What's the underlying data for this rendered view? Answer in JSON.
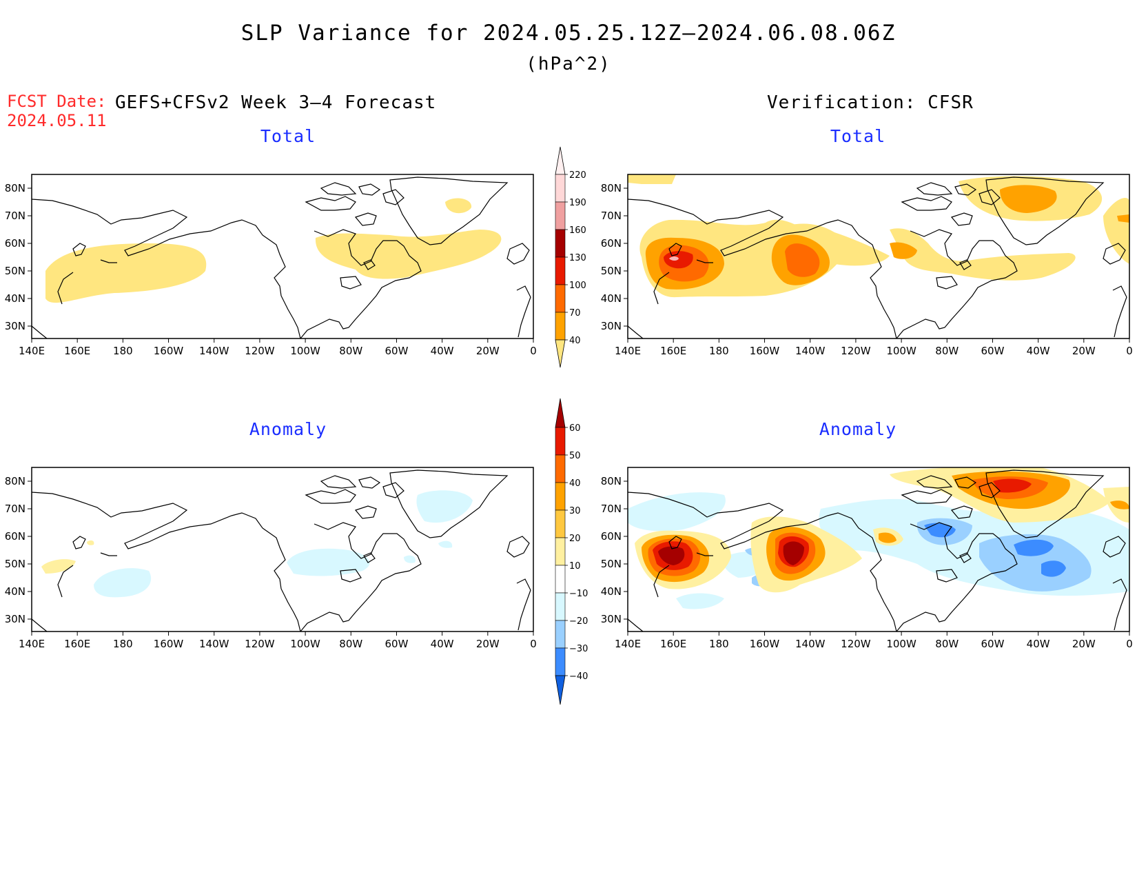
{
  "header": {
    "title": "SLP Variance for 2024.05.25.12Z–2024.06.08.06Z",
    "units": "(hPa^2)",
    "fcst_label": "FCST Date:",
    "fcst_date": "2024.05.11",
    "left_column": "GEFS+CFSv2 Week 3–4 Forecast",
    "right_column": "Verification: CFSR"
  },
  "panels": {
    "fc_total": "Total",
    "ob_total": "Total",
    "fc_anom": "Anomaly",
    "ob_anom": "Anomaly"
  },
  "axes": {
    "lat_labels": [
      "80N",
      "70N",
      "60N",
      "50N",
      "40N",
      "30N"
    ],
    "lon_labels": [
      "140E",
      "160E",
      "180",
      "160W",
      "140W",
      "120W",
      "100W",
      "80W",
      "60W",
      "40W",
      "20W",
      "0"
    ]
  },
  "colorbars": {
    "total": {
      "levels": [
        "40",
        "70",
        "100",
        "130",
        "160",
        "190",
        "220"
      ],
      "colors": [
        "#ffe680",
        "#ffa200",
        "#ff6a00",
        "#e81a00",
        "#a50000",
        "#f0a0a0",
        "#ffd8d8",
        "#fff0f0"
      ]
    },
    "anomaly": {
      "levels": [
        "60",
        "50",
        "40",
        "30",
        "20",
        "10",
        "−10",
        "−20",
        "−30",
        "−40"
      ],
      "colors": [
        "#a50000",
        "#e81a00",
        "#ff6a00",
        "#ffa200",
        "#ffc840",
        "#fff0a0",
        "#ffffff",
        "#d8f8ff",
        "#9ad0ff",
        "#3c8cff",
        "#1060e0"
      ]
    }
  },
  "map_colors": {
    "yellow": "#ffe680",
    "orange": "#ffa200",
    "dkorange": "#ff6a00",
    "red": "#e81a00",
    "dkred": "#a50000",
    "pink": "#f7b5b5",
    "ltblue": "#d8f8ff",
    "blue": "#9ad0ff",
    "dkblue": "#3c8cff"
  }
}
